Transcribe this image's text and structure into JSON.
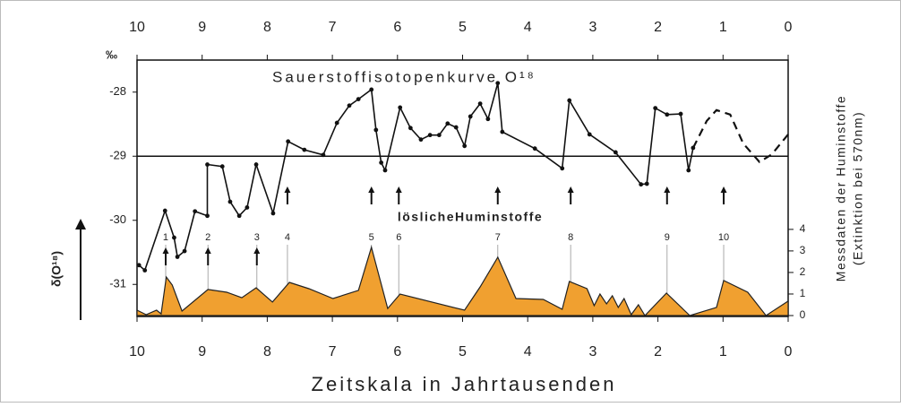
{
  "chart_data": {
    "type": "line",
    "title": "Sauerstoffisotopenkurve O¹⁸",
    "unit_label": "‰",
    "xlabel": "Zeitskala in Jahrtausenden",
    "ylabel": "δ(O¹⁸)",
    "y2label": [
      "Messdaten der Huminstoffe",
      "(Extinktion bei 570nm)"
    ],
    "annotation": "löslicheHuminstoffe",
    "xlim": [
      10,
      0
    ],
    "xticks": [
      10,
      9,
      8,
      7,
      6,
      5,
      4,
      3,
      2,
      1,
      0
    ],
    "ylim": [
      -31.5,
      -27.5
    ],
    "yticks": [
      -28,
      -29,
      -30,
      -31
    ],
    "y2lim": [
      0,
      11.9
    ],
    "y2ticks": [
      0,
      1,
      2,
      3,
      4
    ],
    "reference_line": -29,
    "series": [
      {
        "color": "#111111",
        "markers": true,
        "x": [
          9.97,
          9.88,
          9.57,
          9.43,
          9.38,
          9.27,
          9.11,
          8.92,
          8.92,
          8.69,
          8.57,
          8.43,
          8.31,
          8.17,
          7.91,
          7.68,
          7.43,
          7.14,
          6.93,
          6.74,
          6.6,
          6.4,
          6.33,
          6.25,
          6.19,
          5.96,
          5.8,
          5.64,
          5.5,
          5.36,
          5.23,
          5.1,
          4.97,
          4.88,
          4.73,
          4.61,
          4.46,
          4.39,
          3.89,
          3.47,
          3.36,
          3.05,
          2.65,
          2.26,
          2.17,
          2.04,
          1.86,
          1.65,
          1.53,
          1.46
        ],
        "values": [
          -30.7,
          -30.78,
          -29.85,
          -30.27,
          -30.57,
          -30.48,
          -29.86,
          -29.93,
          -29.13,
          -29.16,
          -29.71,
          -29.93,
          -29.8,
          -29.13,
          -29.89,
          -28.77,
          -28.9,
          -28.98,
          -28.48,
          -28.21,
          -28.11,
          -27.96,
          -28.59,
          -29.1,
          -29.22,
          -28.24,
          -28.56,
          -28.74,
          -28.67,
          -28.67,
          -28.49,
          -28.55,
          -28.84,
          -28.38,
          -28.18,
          -28.42,
          -27.86,
          -28.62,
          -28.88,
          -29.19,
          -28.13,
          -28.66,
          -28.94,
          -29.44,
          -29.43,
          -28.25,
          -28.35,
          -28.34,
          -29.22,
          -28.87
        ]
      },
      {
        "color": "#111111",
        "dashed": true,
        "x": [
          1.46,
          1.25,
          1.1,
          0.89,
          0.69,
          0.44,
          0.25,
          0
        ],
        "values": [
          -28.87,
          -28.45,
          -28.28,
          -28.35,
          -28.8,
          -29.09,
          -28.97,
          -28.66
        ]
      },
      {
        "color": "#f0a030",
        "axis": "y2",
        "fill": true,
        "x": [
          10,
          9.86,
          9.7,
          9.63,
          9.55,
          9.46,
          9.31,
          8.91,
          8.62,
          8.39,
          8.17,
          7.92,
          7.66,
          7.36,
          6.99,
          6.6,
          6.4,
          6.15,
          5.96,
          4.97,
          4.73,
          4.46,
          4.18,
          3.76,
          3.47,
          3.36,
          3.09,
          2.98,
          2.89,
          2.79,
          2.7,
          2.61,
          2.52,
          2.41,
          2.3,
          2.2,
          1.87,
          1.51,
          1.1,
          0.99,
          0.62,
          0.34,
          0
        ],
        "values": [
          0.25,
          0.04,
          0.25,
          0.08,
          1.79,
          1.42,
          0.21,
          1.21,
          1.08,
          0.83,
          1.29,
          0.63,
          1.54,
          1.25,
          0.79,
          1.17,
          3.17,
          0.33,
          1.0,
          0.25,
          1.33,
          2.71,
          0.79,
          0.75,
          0.29,
          1.58,
          1.25,
          0.46,
          1.0,
          0.54,
          0.92,
          0.38,
          0.79,
          0.04,
          0.5,
          0,
          1.04,
          0,
          0.38,
          1.63,
          1.08,
          0,
          0.67
        ]
      }
    ],
    "events": [
      {
        "label": "1",
        "x": 9.56
      },
      {
        "label": "2",
        "x": 8.91
      },
      {
        "label": "3",
        "x": 8.16
      },
      {
        "label": "4",
        "x": 7.69
      },
      {
        "label": "5",
        "x": 6.4
      },
      {
        "label": "6",
        "x": 5.98
      },
      {
        "label": "7",
        "x": 4.46
      },
      {
        "label": "8",
        "x": 3.34
      },
      {
        "label": "9",
        "x": 1.86
      },
      {
        "label": "10",
        "x": 0.99
      }
    ]
  }
}
